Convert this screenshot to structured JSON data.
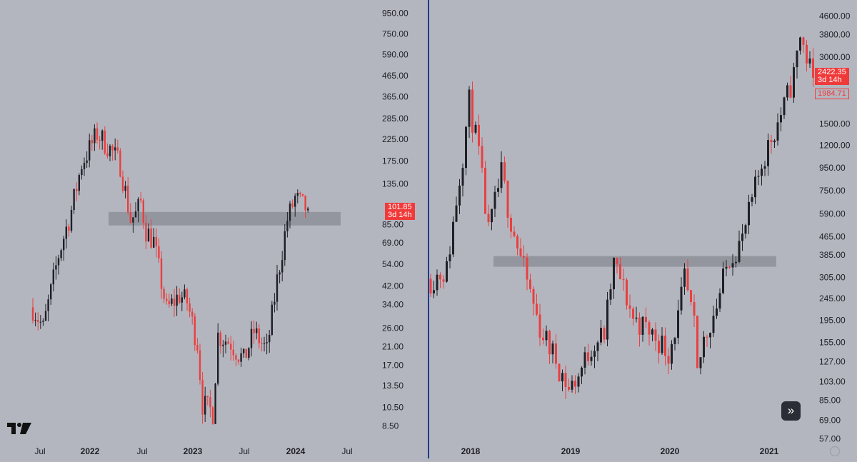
{
  "colors": {
    "background": "#b4b6bf",
    "up": "#1f1f26",
    "down": "#e84040",
    "zone": "#8e9099",
    "divider": "#1f3a8a",
    "axis_text": "#1f1f26"
  },
  "icons": {
    "logo": "tradingview-logo-icon",
    "expand": "double-chevron-right-icon",
    "settings": "gear-icon"
  },
  "left_chart": {
    "y_axis_labels": [
      "950.00",
      "750.00",
      "590.00",
      "465.00",
      "365.00",
      "285.00",
      "225.00",
      "175.00",
      "135.00",
      "85.00",
      "69.00",
      "54.00",
      "42.00",
      "34.00",
      "26.00",
      "21.00",
      "17.00",
      "13.50",
      "10.50",
      "8.50"
    ],
    "x_axis_labels": [
      "Jul",
      "2022",
      "Jul",
      "2023",
      "Jul",
      "2024",
      "Jul"
    ],
    "price_badge": {
      "price": "101.85",
      "countdown": "3d 14h"
    }
  },
  "right_chart": {
    "y_axis_labels": [
      "4600.00",
      "3800.00",
      "3000.00",
      "1500.00",
      "1200.00",
      "950.00",
      "750.00",
      "590.00",
      "465.00",
      "385.00",
      "305.00",
      "245.00",
      "195.00",
      "155.00",
      "127.00",
      "103.00",
      "85.00",
      "69.00",
      "57.00"
    ],
    "x_axis_labels": [
      "2018",
      "2019",
      "2020",
      "2021"
    ],
    "price_badge": {
      "price": "2422.35",
      "countdown": "3d 14h"
    },
    "secondary_badge": "1984.71",
    "expand_glyph": "»"
  },
  "chart_data": [
    {
      "type": "candlestick",
      "scale": "log",
      "ylim": [
        7.5,
        1050
      ],
      "x_ticks": [
        "Jul",
        "2022",
        "Jul",
        "2023",
        "Jul",
        "2024",
        "Jul"
      ],
      "last_price": 101.85,
      "support_zone": [
        84,
        98
      ],
      "close_path": [
        [
          0,
          33
        ],
        [
          4,
          26
        ],
        [
          10,
          60
        ],
        [
          15,
          100
        ],
        [
          19,
          170
        ],
        [
          25,
          240
        ],
        [
          29,
          210
        ],
        [
          34,
          170
        ],
        [
          38,
          90
        ],
        [
          40,
          95
        ],
        [
          42,
          110
        ],
        [
          44,
          80
        ],
        [
          47,
          70
        ],
        [
          52,
          32
        ],
        [
          57,
          38
        ],
        [
          60,
          35
        ],
        [
          64,
          22
        ],
        [
          66,
          11
        ],
        [
          70,
          10
        ],
        [
          72,
          24
        ],
        [
          77,
          22
        ],
        [
          82,
          18
        ],
        [
          86,
          25
        ],
        [
          91,
          20
        ],
        [
          95,
          45
        ],
        [
          99,
          90
        ],
        [
          102,
          115
        ],
        [
          107,
          100
        ]
      ]
    },
    {
      "type": "candlestick",
      "scale": "log",
      "ylim": [
        50,
        5200
      ],
      "x_ticks": [
        "2018",
        "2019",
        "2020",
        "2021"
      ],
      "last_price": 2422.35,
      "secondary_price": 1984.71,
      "support_zone": [
        340,
        380
      ],
      "close_path": [
        [
          0,
          300
        ],
        [
          5,
          330
        ],
        [
          10,
          1100
        ],
        [
          12,
          1900
        ],
        [
          15,
          1100
        ],
        [
          18,
          480
        ],
        [
          22,
          900
        ],
        [
          25,
          550
        ],
        [
          29,
          330
        ],
        [
          34,
          180
        ],
        [
          39,
          130
        ],
        [
          43,
          95
        ],
        [
          46,
          110
        ],
        [
          50,
          150
        ],
        [
          54,
          170
        ],
        [
          57,
          350
        ],
        [
          59,
          300
        ],
        [
          63,
          200
        ],
        [
          67,
          180
        ],
        [
          71,
          160
        ],
        [
          74,
          140
        ],
        [
          77,
          200
        ],
        [
          79,
          300
        ],
        [
          82,
          180
        ],
        [
          83,
          110
        ],
        [
          85,
          160
        ],
        [
          89,
          230
        ],
        [
          93,
          380
        ],
        [
          97,
          450
        ],
        [
          103,
          1000
        ],
        [
          106,
          1300
        ],
        [
          110,
          1800
        ],
        [
          113,
          2500
        ],
        [
          115,
          3800
        ],
        [
          117,
          3000
        ],
        [
          119,
          2422
        ]
      ]
    }
  ]
}
